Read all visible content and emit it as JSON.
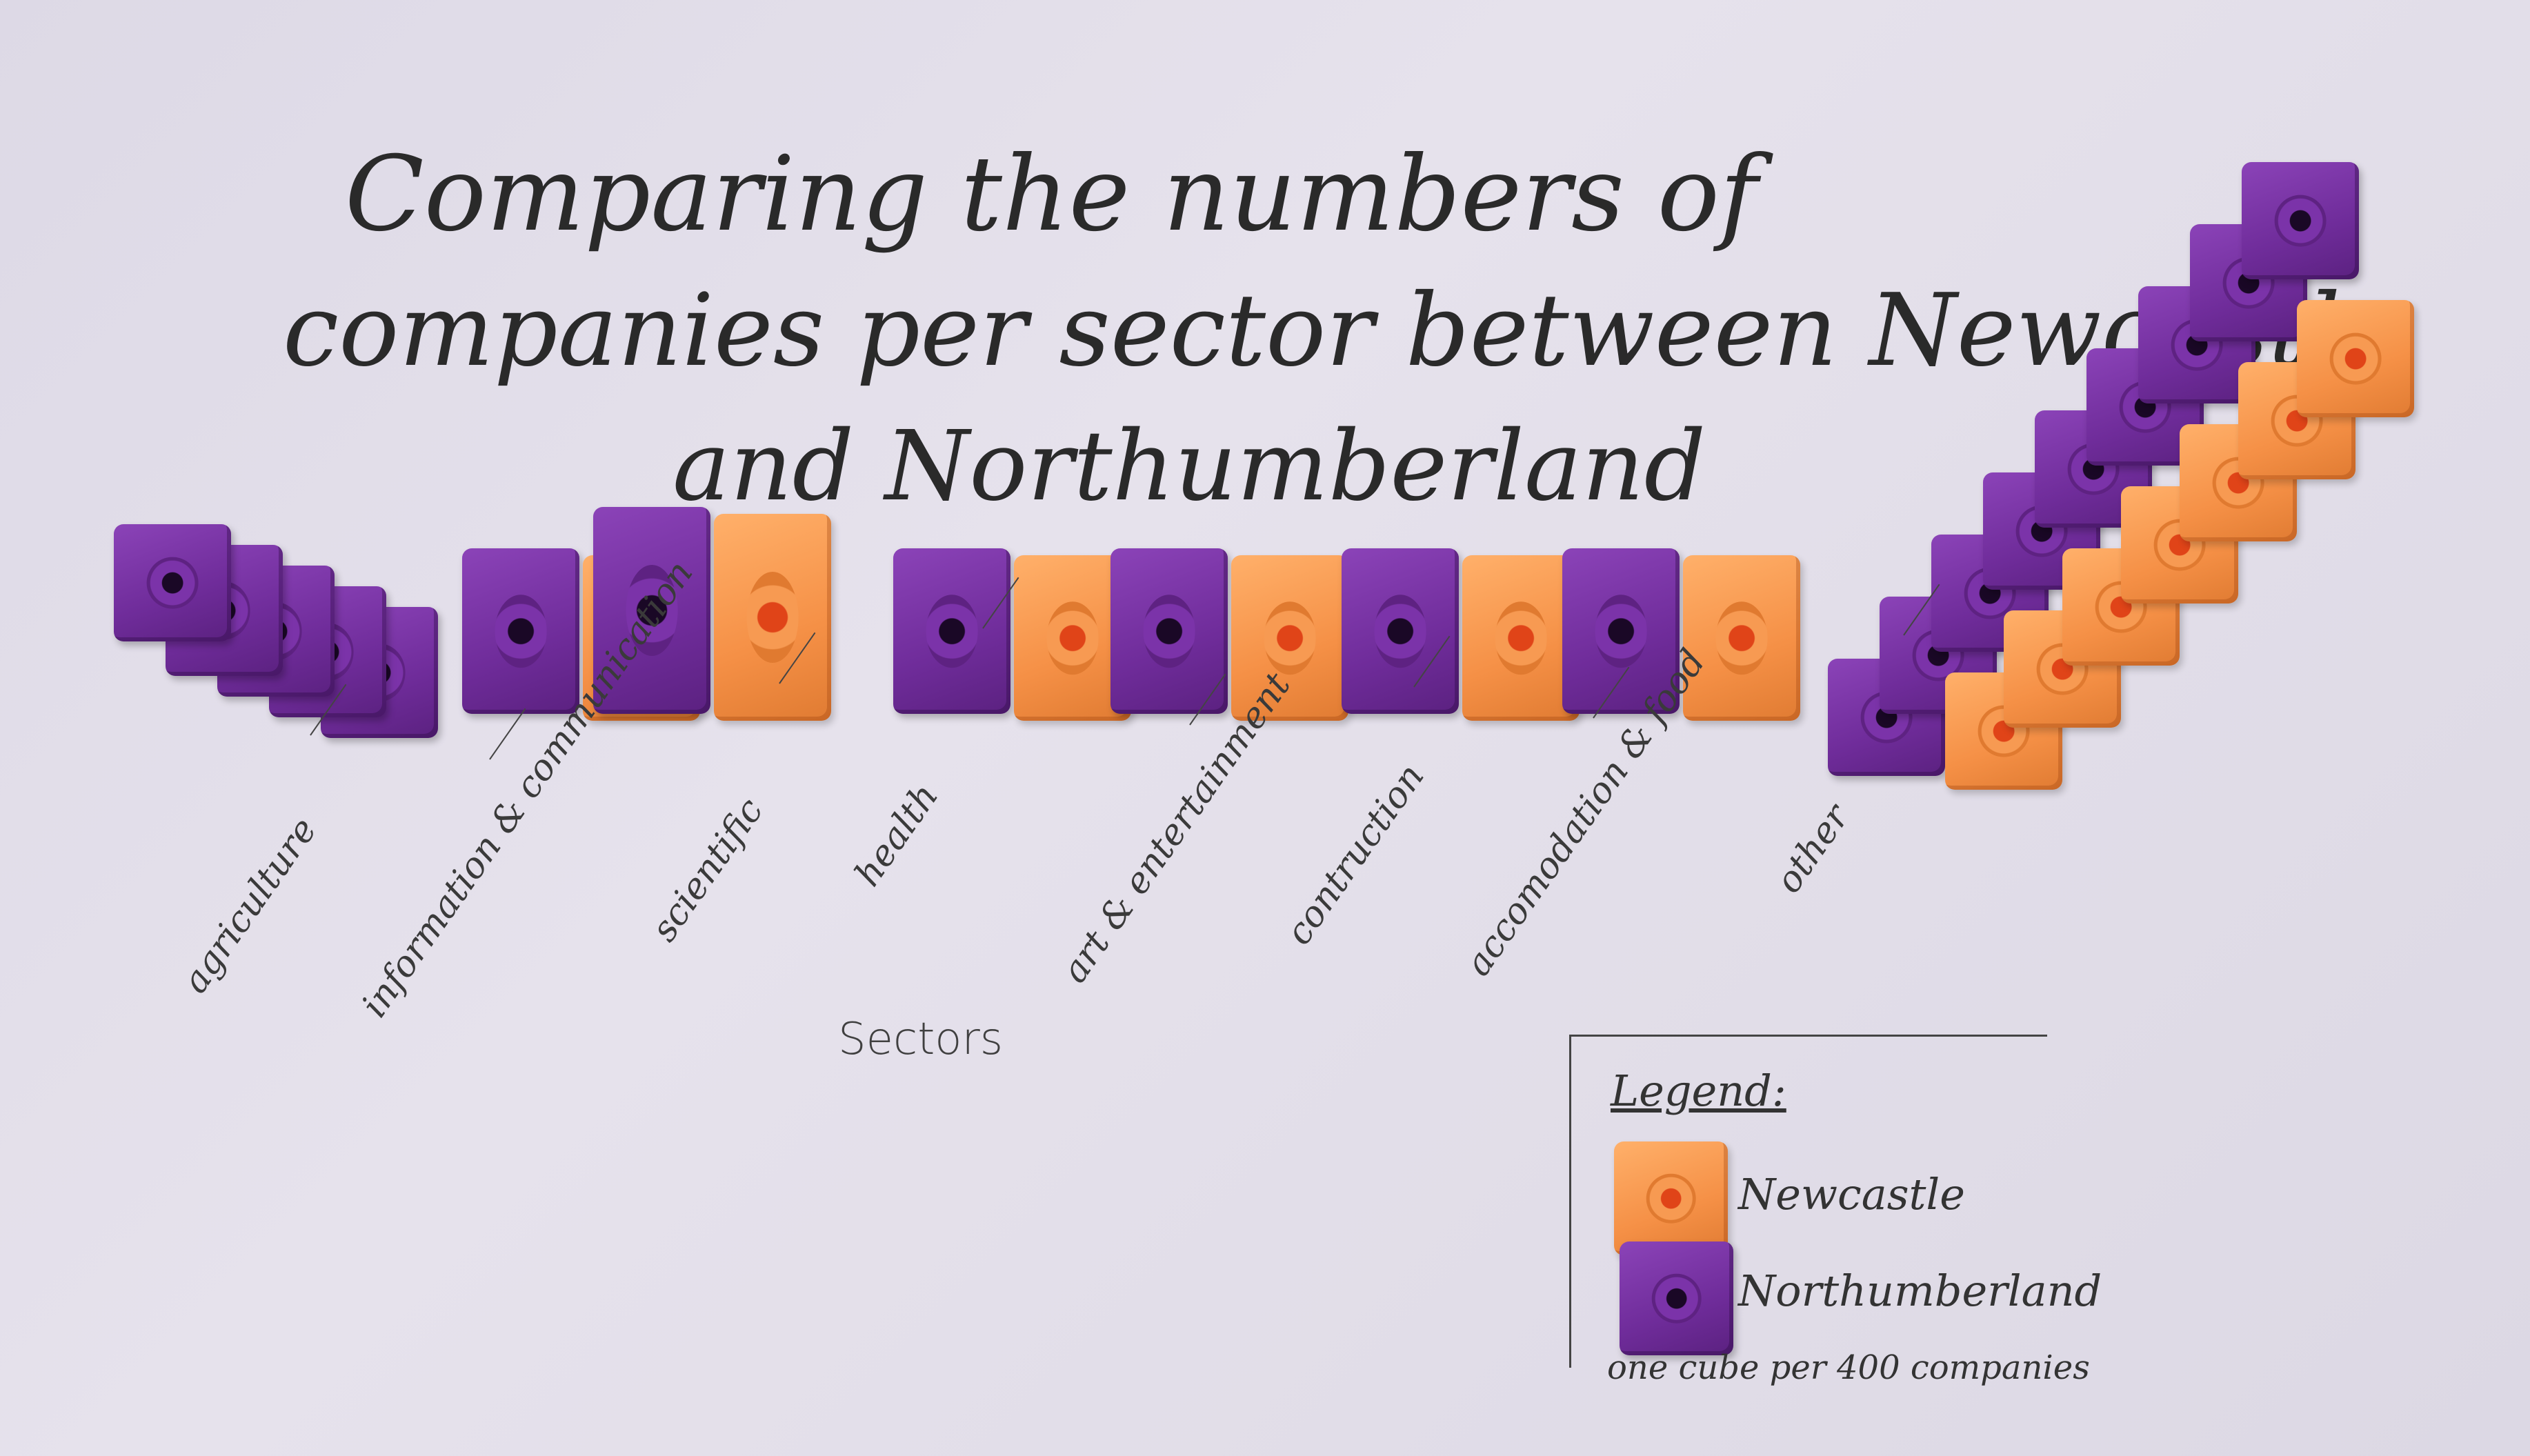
{
  "title": {
    "line1": "Comparing the numbers of",
    "line2": "companies per sector between Newcastle",
    "line3": "and Northumberland"
  },
  "axis_title": "Sectors",
  "legend": {
    "title": "Legend:",
    "newcastle": "Newcastle",
    "northumberland": "Northumberland",
    "note": "one cube per 400 companies"
  },
  "colors": {
    "newcastle": "#f59046",
    "northumberland": "#6f2c9a"
  },
  "chart_data": {
    "type": "bar",
    "title": "Comparing the numbers of companies per sector between Newcastle and Northumberland",
    "xlabel": "Sectors",
    "ylabel": "",
    "categories": [
      "agriculture",
      "information & communication",
      "scientific",
      "health",
      "art & entertainment",
      "contruction",
      "accomodation & food",
      "other"
    ],
    "unit_note": "one cube per 400 companies",
    "series": [
      {
        "name": "Northumberland",
        "values": [
          5,
          1,
          2,
          1,
          1,
          1,
          1,
          9
        ]
      },
      {
        "name": "Newcastle",
        "values": [
          0,
          1,
          2,
          1,
          1,
          1,
          1,
          7
        ]
      }
    ]
  }
}
